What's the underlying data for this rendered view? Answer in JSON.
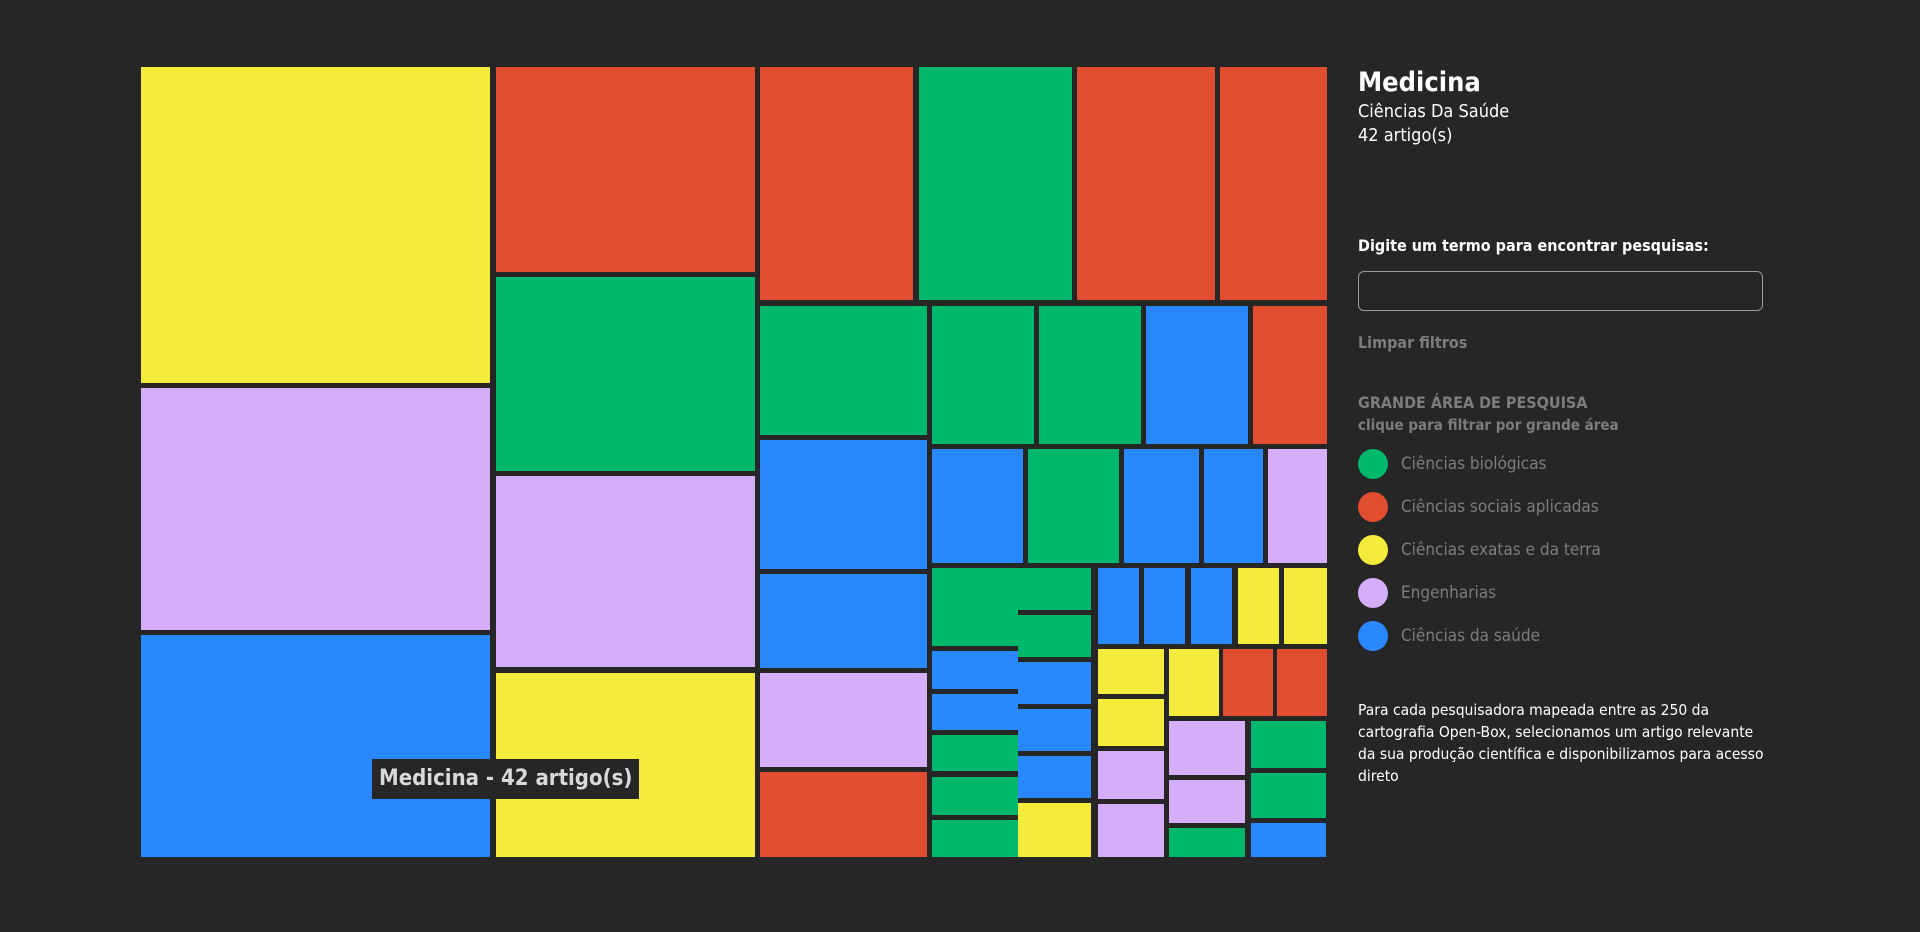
{
  "colors": {
    "biologicas": "#00b86b",
    "sociais": "#e04e2f",
    "exatas": "#f4eb3c",
    "engenharias": "#d5adf8",
    "saude": "#2888fc"
  },
  "selected": {
    "title": "Medicina",
    "subtitle": "Ciências Da Saúde",
    "count": "42 artigo(s)"
  },
  "tooltip": "Medicina - 42 artigo(s)",
  "search": {
    "label": "Digite um termo para encontrar pesquisas:",
    "value": "",
    "placeholder": ""
  },
  "clear_filters_label": "Limpar filtros",
  "legend": {
    "title": "GRANDE ÁREA DE PESQUISA",
    "hint": "clique para filtrar por grande área",
    "items": [
      {
        "label": "Ciências biológicas",
        "key": "biologicas"
      },
      {
        "label": "Ciências sociais aplicadas",
        "key": "sociais"
      },
      {
        "label": "Ciências exatas e da terra",
        "key": "exatas"
      },
      {
        "label": "Engenharias",
        "key": "engenharias"
      },
      {
        "label": "Ciências da saúde",
        "key": "saude"
      }
    ]
  },
  "footnote": "Para cada pesquisadora mapeada entre as 250 da cartografia Open-Box, selecionamos um artigo relevante da sua produção científica e disponibilizamos para acesso direto",
  "chart_data": {
    "type": "treemap",
    "title": "",
    "legend_placement": "right",
    "unit": "artigo(s)",
    "categories": [
      "Ciências biológicas",
      "Ciências sociais aplicadas",
      "Ciências exatas e da terra",
      "Engenharias",
      "Ciências da saúde"
    ],
    "leaves": [
      {
        "category": "Ciências exatas e da terra",
        "value": 47
      },
      {
        "category": "Engenharias",
        "value": 36
      },
      {
        "category": "Ciências da saúde",
        "name": "Medicina",
        "value": 42
      },
      {
        "category": "Ciências sociais aplicadas",
        "value": 22
      },
      {
        "category": "Ciências biológicas",
        "value": 22
      },
      {
        "category": "Engenharias",
        "value": 21
      },
      {
        "category": "Ciências exatas e da terra",
        "value": 21
      },
      {
        "category": "Ciências sociais aplicadas",
        "value": 15
      },
      {
        "category": "Ciências biológicas",
        "value": 15
      },
      {
        "category": "Ciências sociais aplicadas",
        "value": 14
      },
      {
        "category": "Ciências sociais aplicadas",
        "value": 10
      },
      {
        "category": "Ciências biológicas",
        "value": 9
      },
      {
        "category": "Ciências biológicas",
        "value": 6.5
      },
      {
        "category": "Ciências biológicas",
        "value": 6.5
      },
      {
        "category": "Ciências da saúde",
        "value": 6.5
      },
      {
        "category": "Ciências sociais aplicadas",
        "value": 4.4
      },
      {
        "category": "Ciências da saúde",
        "value": 9.1
      },
      {
        "category": "Ciências da saúde",
        "value": 7.6
      },
      {
        "category": "Engenharias",
        "value": 7.5
      },
      {
        "category": "Ciências sociais aplicadas",
        "value": 5.5
      },
      {
        "category": "Ciências da saúde",
        "value": 5.8
      },
      {
        "category": "Ciências biológicas",
        "value": 4.9
      },
      {
        "category": "Ciências da saúde",
        "value": 4
      },
      {
        "category": "Ciências da saúde",
        "value": 3.7
      },
      {
        "category": "Engenharias",
        "value": 3.3
      },
      {
        "category": "Ciências biológicas",
        "value": 1.7
      },
      {
        "category": "Ciências biológicas",
        "value": 1.7
      },
      {
        "category": "Ciências biológicas",
        "value": 1.7
      },
      {
        "category": "Ciências da saúde",
        "value": 1.5
      },
      {
        "category": "Ciências da saúde",
        "value": 1.5
      },
      {
        "category": "Ciências da saúde",
        "value": 1.3
      },
      {
        "category": "Ciências da saúde",
        "value": 1.3
      },
      {
        "category": "Ciências da saúde",
        "value": 1.3
      },
      {
        "category": "Ciências da saúde",
        "value": 1.3
      },
      {
        "category": "Ciências exatas e da terra",
        "value": 1.7
      },
      {
        "category": "Ciências exatas e da terra",
        "value": 1.5
      },
      {
        "category": "Ciências exatas e da terra",
        "value": 1.5
      },
      {
        "category": "Ciências sociais aplicadas",
        "value": 1
      },
      {
        "category": "Ciências sociais aplicadas",
        "value": 1
      },
      {
        "category": "Ciências biológicas",
        "value": 1
      },
      {
        "category": "Ciências biológicas",
        "value": 1
      },
      {
        "category": "Ciências biológicas",
        "value": 1
      },
      {
        "category": "Ciências da saúde",
        "value": 1
      },
      {
        "category": "Ciências da saúde",
        "value": 1
      },
      {
        "category": "Ciências exatas e da terra",
        "value": 1.2
      },
      {
        "category": "Ciências exatas e da terra",
        "value": 1.2
      },
      {
        "category": "Ciências exatas e da terra",
        "value": 1.2
      },
      {
        "category": "Engenharias",
        "value": 1.2
      },
      {
        "category": "Engenharias",
        "value": 1.2
      },
      {
        "category": "Engenharias",
        "value": 1.2
      },
      {
        "category": "Engenharias",
        "value": 1.2
      },
      {
        "category": "Ciências biológicas",
        "value": 0.5
      },
      {
        "category": "Ciências biológicas",
        "value": 0.5
      },
      {
        "category": "Ciências biológicas",
        "value": 0.5
      },
      {
        "category": "Ciências da saúde",
        "value": 0.5
      }
    ]
  }
}
